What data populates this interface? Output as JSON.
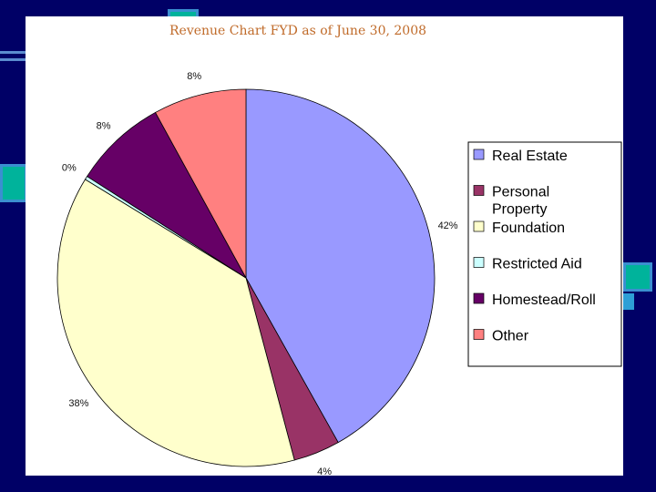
{
  "chart_data": {
    "type": "pie",
    "title": "Revenue Chart FYD as of June 30, 2008",
    "slices": [
      {
        "name": "Real Estate",
        "value": 42,
        "label": "42%",
        "color": "#9999ff"
      },
      {
        "name": "Personal Property",
        "value": 4,
        "label": "4%",
        "color": "#993366"
      },
      {
        "name": "Foundation",
        "value": 38,
        "label": "38%",
        "color": "#ffffcc"
      },
      {
        "name": "Restricted Aid",
        "value": 0.3,
        "label": "0%",
        "color": "#ccffff"
      },
      {
        "name": "Homestead/Roll",
        "value": 8,
        "label": "8%",
        "color": "#660066"
      },
      {
        "name": "Other",
        "value": 8,
        "label": "8%",
        "color": "#ff8080"
      }
    ],
    "legend_position": "right"
  }
}
